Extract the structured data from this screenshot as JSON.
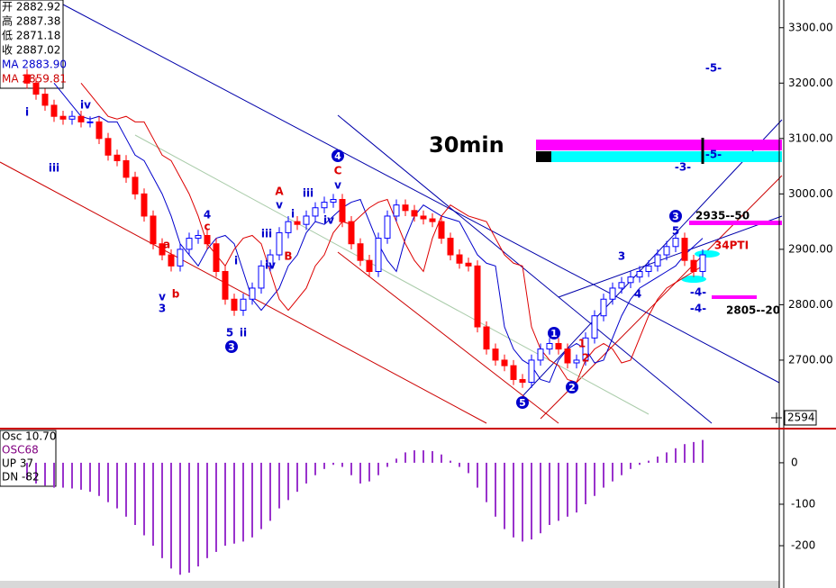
{
  "chart_data": {
    "type": "candlestick",
    "title": "30min",
    "up_color": "#0000ff",
    "down_color": "#ff0000",
    "ma_colors": [
      "#0000cc",
      "#dd0000"
    ],
    "osc_color": "#9933cc",
    "ylim": [
      2578,
      3350
    ],
    "yticks": [
      {
        "value": 3300,
        "label": "3300.00"
      },
      {
        "value": 3200,
        "label": "3200.00"
      },
      {
        "value": 3100,
        "label": "3100.00"
      },
      {
        "value": 3000,
        "label": "3000.00"
      },
      {
        "value": 2900,
        "label": "2900.00"
      },
      {
        "value": 2800,
        "label": "2800.00"
      },
      {
        "value": 2700,
        "label": "2700.00"
      }
    ],
    "open": [
      3215,
      3200,
      3180,
      3160,
      3140,
      3135,
      3140,
      3130,
      3130,
      3100,
      3070,
      3060,
      3030,
      3000,
      2960,
      2910,
      2890,
      2870,
      2900,
      2920,
      2925,
      2910,
      2860,
      2810,
      2790,
      2810,
      2830,
      2870,
      2890,
      2930,
      2950,
      2945,
      2960,
      2975,
      2985,
      2990,
      2950,
      2910,
      2880,
      2860,
      2920,
      2960,
      2980,
      2970,
      2960,
      2955,
      2950,
      2920,
      2890,
      2875,
      2870,
      2760,
      2720,
      2700,
      2690,
      2665,
      2660,
      2700,
      2720,
      2730,
      2720,
      2695,
      2700,
      2740,
      2780,
      2810,
      2830,
      2840,
      2850,
      2860,
      2870,
      2890,
      2905,
      2920,
      2880,
      2860
    ],
    "high": [
      3225,
      3210,
      3190,
      3170,
      3150,
      3150,
      3150,
      3140,
      3140,
      3110,
      3080,
      3070,
      3040,
      3010,
      2970,
      2920,
      2900,
      2910,
      2930,
      2935,
      2935,
      2920,
      2870,
      2820,
      2820,
      2840,
      2880,
      2900,
      2940,
      2960,
      2960,
      2970,
      2985,
      2995,
      3000,
      3000,
      2960,
      2920,
      2890,
      2930,
      2970,
      2990,
      2990,
      2980,
      2970,
      2965,
      2960,
      2930,
      2900,
      2885,
      2880,
      2770,
      2730,
      2710,
      2700,
      2675,
      2710,
      2730,
      2740,
      2740,
      2730,
      2710,
      2750,
      2790,
      2820,
      2840,
      2850,
      2860,
      2870,
      2880,
      2900,
      2915,
      2930,
      2930,
      2890,
      2900
    ],
    "low": [
      3190,
      3170,
      3150,
      3130,
      3125,
      3125,
      3120,
      3120,
      3090,
      3060,
      3050,
      3020,
      2990,
      2950,
      2900,
      2880,
      2860,
      2860,
      2890,
      2910,
      2900,
      2850,
      2800,
      2780,
      2780,
      2800,
      2820,
      2860,
      2880,
      2920,
      2935,
      2935,
      2950,
      2965,
      2975,
      2940,
      2900,
      2870,
      2850,
      2850,
      2910,
      2950,
      2960,
      2950,
      2945,
      2940,
      2910,
      2880,
      2865,
      2860,
      2750,
      2710,
      2690,
      2680,
      2655,
      2650,
      2650,
      2690,
      2710,
      2710,
      2685,
      2685,
      2690,
      2730,
      2770,
      2800,
      2820,
      2830,
      2840,
      2850,
      2860,
      2880,
      2895,
      2870,
      2850,
      2850
    ],
    "close": [
      3200,
      3180,
      3160,
      3140,
      3135,
      3140,
      3130,
      3130,
      3100,
      3070,
      3060,
      3030,
      3000,
      2960,
      2910,
      2890,
      2870,
      2900,
      2920,
      2925,
      2910,
      2860,
      2810,
      2790,
      2810,
      2830,
      2870,
      2890,
      2930,
      2950,
      2945,
      2960,
      2975,
      2985,
      2990,
      2950,
      2910,
      2880,
      2860,
      2920,
      2960,
      2980,
      2970,
      2960,
      2955,
      2950,
      2920,
      2890,
      2875,
      2870,
      2760,
      2720,
      2700,
      2690,
      2665,
      2660,
      2700,
      2720,
      2730,
      2720,
      2695,
      2700,
      2740,
      2780,
      2810,
      2830,
      2840,
      2850,
      2860,
      2870,
      2890,
      2905,
      2920,
      2880,
      2860,
      2890
    ],
    "ma_fast": [
      null,
      null,
      null,
      3200,
      3180,
      3160,
      3140,
      3135,
      3140,
      3130,
      3130,
      3100,
      3070,
      3060,
      3030,
      3000,
      2960,
      2910,
      2890,
      2870,
      2900,
      2920,
      2925,
      2910,
      2860,
      2810,
      2790,
      2810,
      2830,
      2870,
      2890,
      2930,
      2950,
      2945,
      2960,
      2975,
      2985,
      2990,
      2950,
      2910,
      2880,
      2860,
      2920,
      2960,
      2980,
      2970,
      2960,
      2955,
      2950,
      2920,
      2890,
      2875,
      2870,
      2760,
      2720,
      2700,
      2690,
      2665,
      2660,
      2700,
      2720,
      2730,
      2720,
      2695,
      2700,
      2740,
      2780,
      2810,
      2830,
      2840,
      2850,
      2860,
      2870,
      2890,
      2905,
      2920
    ],
    "ma_slow": [
      null,
      null,
      null,
      null,
      null,
      null,
      3200,
      3180,
      3160,
      3140,
      3135,
      3140,
      3130,
      3130,
      3100,
      3070,
      3060,
      3030,
      3000,
      2960,
      2910,
      2890,
      2870,
      2900,
      2920,
      2925,
      2910,
      2860,
      2810,
      2790,
      2810,
      2830,
      2870,
      2890,
      2930,
      2950,
      2945,
      2960,
      2975,
      2985,
      2990,
      2950,
      2910,
      2880,
      2860,
      2920,
      2960,
      2980,
      2970,
      2960,
      2955,
      2950,
      2920,
      2890,
      2875,
      2870,
      2760,
      2720,
      2700,
      2690,
      2665,
      2660,
      2700,
      2720,
      2730,
      2720,
      2695,
      2700,
      2740,
      2780,
      2810,
      2830,
      2840,
      2850,
      2860,
      2870
    ],
    "info": [
      "开 2882.92",
      "高 2887.38",
      "低 2871.18",
      "收 2887.02",
      "MA 2883.90",
      "MA 2859.81"
    ],
    "annotations": [
      "i",
      "iv",
      "iii",
      "a",
      "v",
      "3",
      "b",
      "4",
      "c",
      "5",
      "i",
      "ii",
      "iv",
      "iii",
      "A",
      "v",
      "i",
      "B",
      "iii",
      "C",
      "v",
      "iv",
      "3",
      "4",
      "5",
      "1",
      "2",
      "-5-",
      "-5-",
      "-3-",
      "-4-",
      "-4-",
      "34PTI",
      "2935--50",
      "2805--20",
      "4",
      "3",
      "5",
      "1",
      "2",
      "3"
    ],
    "cursor_label": "2594",
    "osc_texts": [
      "Osc 10.70",
      "OSC68",
      "UP  37",
      "DN  -82"
    ],
    "osc_ylim": [
      -302,
      78
    ],
    "osc_yticks": [
      0,
      -100,
      -200
    ],
    "osc": [
      -40,
      -50,
      -55,
      -60,
      -60,
      -62,
      -65,
      -70,
      -80,
      -95,
      -110,
      -130,
      -150,
      -175,
      -200,
      -230,
      -255,
      -270,
      -265,
      -250,
      -230,
      -215,
      -200,
      -195,
      -190,
      -180,
      -160,
      -140,
      -110,
      -90,
      -70,
      -50,
      -30,
      -15,
      -5,
      -10,
      -30,
      -50,
      -45,
      -30,
      -10,
      10,
      25,
      30,
      30,
      28,
      20,
      5,
      -10,
      -25,
      -60,
      -95,
      -130,
      -160,
      -180,
      -190,
      -185,
      -170,
      -150,
      -140,
      -130,
      -120,
      -100,
      -80,
      -60,
      -45,
      -30,
      -15,
      -5,
      5,
      15,
      25,
      35,
      45,
      50,
      55
    ]
  }
}
